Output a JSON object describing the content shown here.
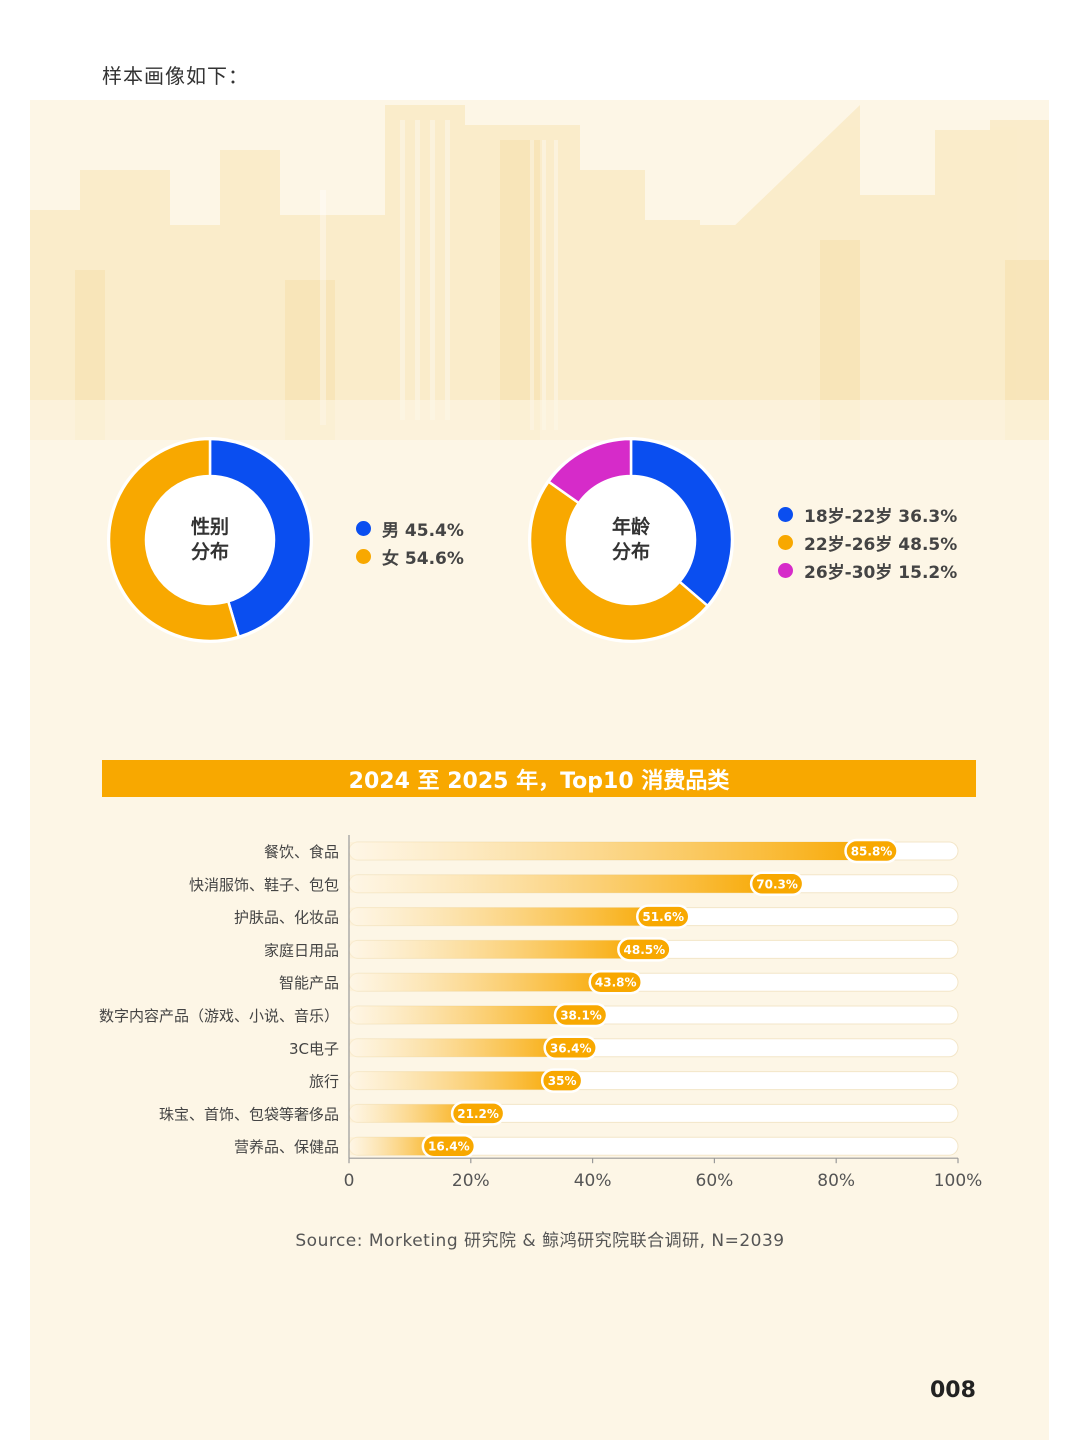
{
  "intro_text": "样本画像如下：",
  "colors": {
    "blue": "#0a4ef0",
    "orange": "#f8a800",
    "magenta": "#d62bc9",
    "background": "#fdf6e6"
  },
  "page_number": "008",
  "source": "Source: Morketing 研究院 & 鲸鸿研究院联合调研, N=2039",
  "chart_data": [
    {
      "type": "pie",
      "title": "性别分布",
      "center_lines": [
        "性别",
        "分布"
      ],
      "slices": [
        {
          "label": "男",
          "value": 45.4,
          "display": "男 45.4%",
          "color": "#0a4ef0"
        },
        {
          "label": "女",
          "value": 54.6,
          "display": "女 54.6%",
          "color": "#f8a800"
        }
      ]
    },
    {
      "type": "pie",
      "title": "年龄分布",
      "center_lines": [
        "年龄",
        "分布"
      ],
      "slices": [
        {
          "label": "18岁-22岁",
          "value": 36.3,
          "display": "18岁-22岁 36.3%",
          "color": "#0a4ef0"
        },
        {
          "label": "22岁-26岁",
          "value": 48.5,
          "display": "22岁-26岁 48.5%",
          "color": "#f8a800"
        },
        {
          "label": "26岁-30岁",
          "value": 15.2,
          "display": "26岁-30岁 15.2%",
          "color": "#d62bc9"
        }
      ]
    },
    {
      "type": "bar",
      "orientation": "horizontal",
      "title": "2024 至 2025 年，Top10 消费品类",
      "categories": [
        "餐饮、食品",
        "快消服饰、鞋子、包包",
        "护肤品、化妆品",
        "家庭日用品",
        "智能产品",
        "数字内容产品（游戏、小说、音乐）",
        "3C电子",
        "旅行",
        "珠宝、首饰、包袋等奢侈品",
        "营养品、保健品"
      ],
      "values": [
        85.8,
        70.3,
        51.6,
        48.5,
        43.8,
        38.1,
        36.4,
        35,
        21.2,
        16.4
      ],
      "value_labels": [
        "85.8%",
        "70.3%",
        "51.6%",
        "48.5%",
        "43.8%",
        "38.1%",
        "36.4%",
        "35%",
        "21.2%",
        "16.4%"
      ],
      "xlim": [
        0,
        100
      ],
      "x_ticks": [
        "0",
        "20%",
        "40%",
        "60%",
        "80%",
        "100%"
      ],
      "grid": false
    }
  ]
}
